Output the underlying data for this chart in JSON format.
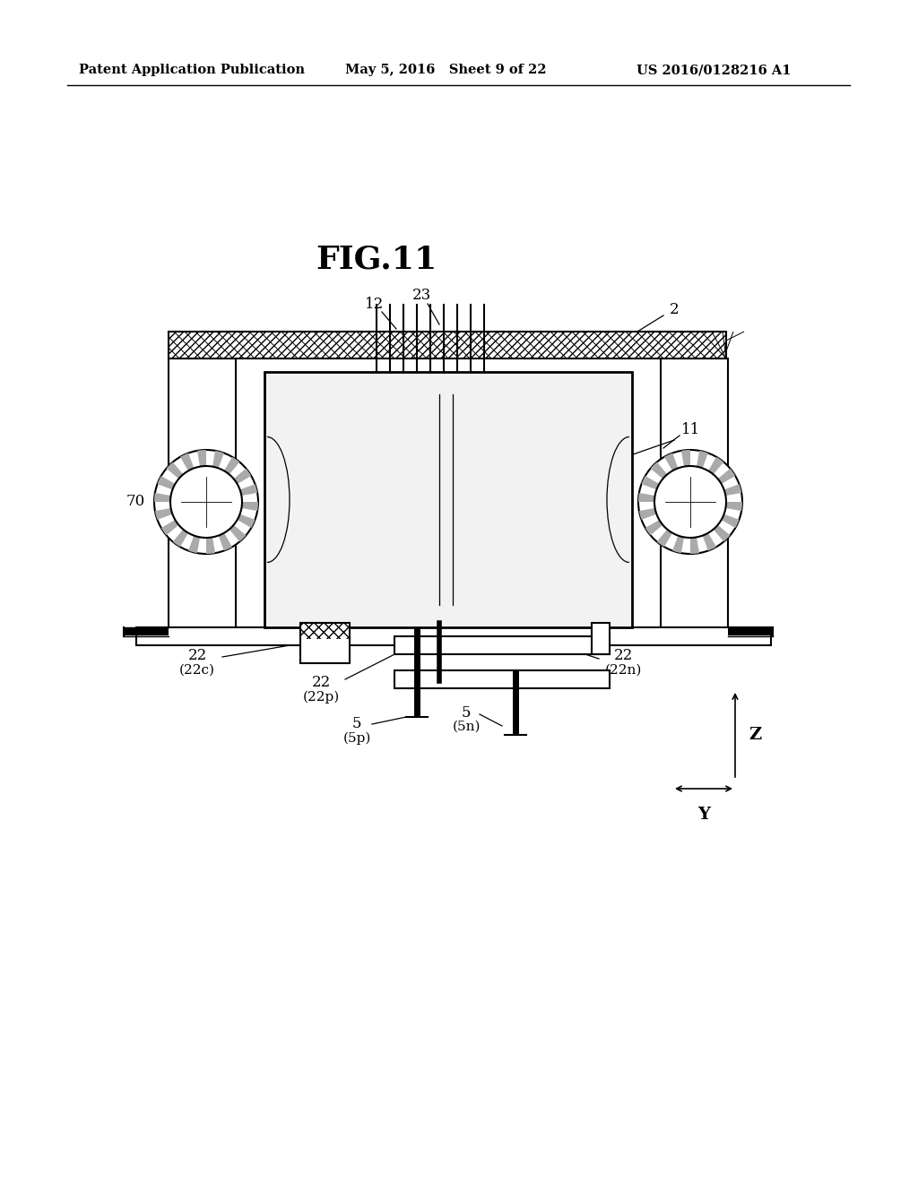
{
  "title": "FIG.11",
  "header_left": "Patent Application Publication",
  "header_center": "May 5, 2016   Sheet 9 of 22",
  "header_right": "US 2016/0128216 A1",
  "bg_color": "#ffffff",
  "line_color": "#000000",
  "fig_width": 10.24,
  "fig_height": 13.2,
  "dpi": 100
}
